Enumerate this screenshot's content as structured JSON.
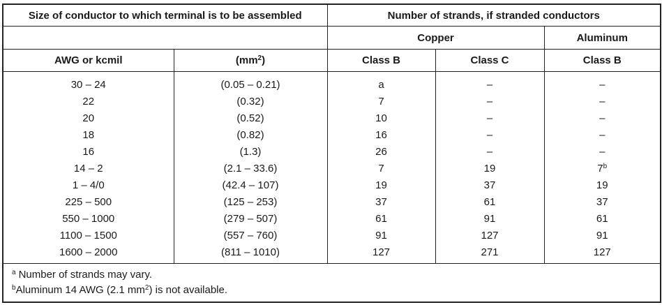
{
  "table": {
    "header": {
      "size_group": "Size of conductor to which terminal is to be assembled",
      "strands_group": "Number of strands, if stranded conductors",
      "copper": "Copper",
      "aluminum": "Aluminum",
      "awg": "AWG or kcmil",
      "mm": {
        "text": "(mm",
        "sup": "2",
        "after": ")"
      },
      "copper_b": "Class B",
      "copper_c": "Class C",
      "aluminum_b": "Class B"
    },
    "rows": [
      [
        "30 – 24",
        "(0.05 – 0.21)",
        "a",
        "–",
        "–"
      ],
      [
        "22",
        "(0.32)",
        "7",
        "–",
        "–"
      ],
      [
        "20",
        "(0.52)",
        "10",
        "–",
        "–"
      ],
      [
        "18",
        "(0.82)",
        "16",
        "–",
        "–"
      ],
      [
        "16",
        "(1.3)",
        "26",
        "–",
        "–"
      ],
      [
        "14 – 2",
        "(2.1 – 33.6)",
        "7",
        "19",
        {
          "text": "7",
          "sup": "b"
        }
      ],
      [
        "1 – 4/0",
        "(42.4 – 107)",
        "19",
        "37",
        "19"
      ],
      [
        "225 – 500",
        "(125 – 253)",
        "37",
        "61",
        "37"
      ],
      [
        "550 – 1000",
        "(279 – 507)",
        "61",
        "91",
        "61"
      ],
      [
        "1100 – 1500",
        "(557 – 760)",
        "91",
        "127",
        "91"
      ],
      [
        "1600 – 2000",
        "(811 – 1010)",
        "127",
        "271",
        "127"
      ]
    ],
    "footnotes": [
      {
        "sup": "a",
        "text": "Number of strands may vary."
      },
      {
        "sup": "b",
        "text": "Aluminum 14 AWG (2.1 mm",
        "sup2": "2",
        "after": ") is not available."
      }
    ]
  }
}
